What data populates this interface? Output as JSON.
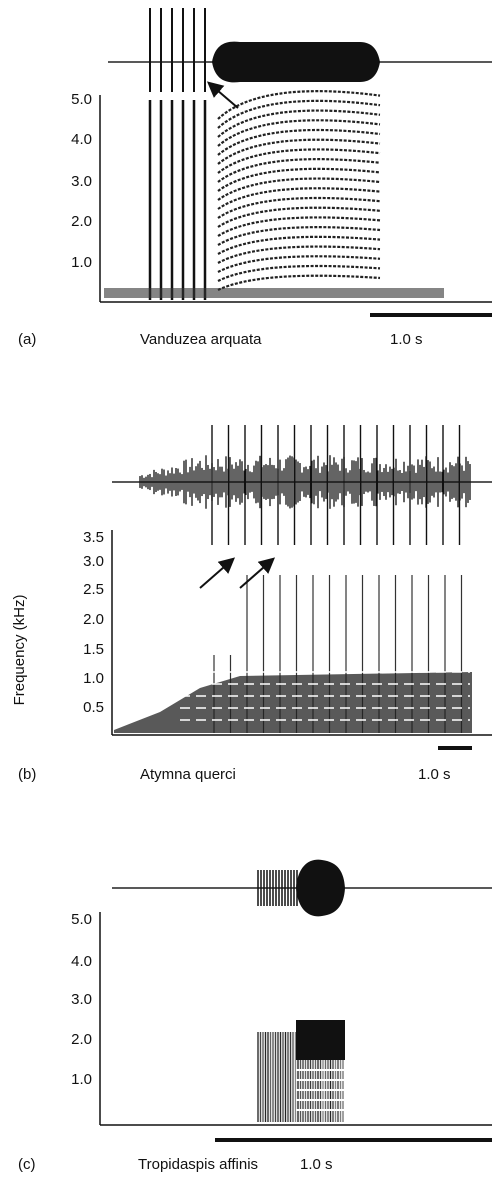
{
  "panels": [
    {
      "label": "(a)",
      "species": "Vanduzea arquata",
      "scale": "1.0 s",
      "yticks": [
        "5.0",
        "4.0",
        "3.0",
        "2.0",
        "1.0"
      ]
    },
    {
      "label": "(b)",
      "species": "Atymna querci",
      "scale": "1.0 s",
      "yticks": [
        "3.5",
        "3.0",
        "2.5",
        "2.0",
        "1.5",
        "1.0",
        "0.5"
      ],
      "ylabel": "Frequency (kHz)"
    },
    {
      "label": "(c)",
      "species": "Tropidaspis affinis",
      "scale": "1.0 s",
      "yticks": [
        "5.0",
        "4.0",
        "3.0",
        "2.0",
        "1.0"
      ]
    }
  ]
}
